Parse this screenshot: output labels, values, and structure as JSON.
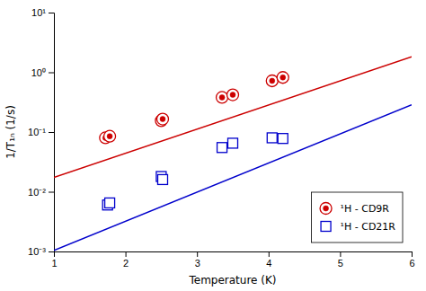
{
  "chart_data": {
    "type": "scatter",
    "xlabel": "Temperature (K)",
    "ylabel": "1/T₁ₙ (1/s)",
    "log": "y",
    "xlim": [
      1,
      6
    ],
    "xticks": [
      1,
      2,
      3,
      4,
      5,
      6
    ],
    "ylim": [
      0.001,
      10
    ],
    "yticks": [
      {
        "value": 0.001,
        "label": "10⁻³"
      },
      {
        "value": 0.01,
        "label": "10⁻²"
      },
      {
        "value": 0.1,
        "label": "10⁻¹"
      },
      {
        "value": 1,
        "label": "10⁰"
      },
      {
        "value": 10,
        "label": "10¹"
      }
    ],
    "legend": "lower right",
    "series": [
      {
        "type": "line",
        "line_style": "solid",
        "color": "#cc0000",
        "x": [
          1,
          6
        ],
        "values": [
          0.017313,
          1.8139
        ]
      },
      {
        "type": "line",
        "line_style": "solid",
        "color": "#0000cc",
        "x": [
          1,
          6
        ],
        "values": [
          0.001042,
          0.28569
        ]
      },
      {
        "type": "scatter",
        "name": "¹H - CD9R",
        "marker": "circle",
        "color": "#cc0000",
        "x": [
          1.72,
          1.78,
          2.5,
          2.52,
          3.35,
          3.5,
          4.05,
          4.2
        ],
        "values": [
          0.08,
          0.085,
          0.155,
          0.165,
          0.38,
          0.42,
          0.72,
          0.82
        ]
      },
      {
        "type": "scatter",
        "name": "¹H - CD21R",
        "marker": "square",
        "color": "#0000cc",
        "x": [
          1.75,
          1.78,
          2.5,
          2.52,
          3.35,
          3.5,
          4.05,
          4.2
        ],
        "values": [
          0.006,
          0.0065,
          0.018,
          0.016,
          0.055,
          0.065,
          0.08,
          0.078
        ]
      }
    ]
  }
}
